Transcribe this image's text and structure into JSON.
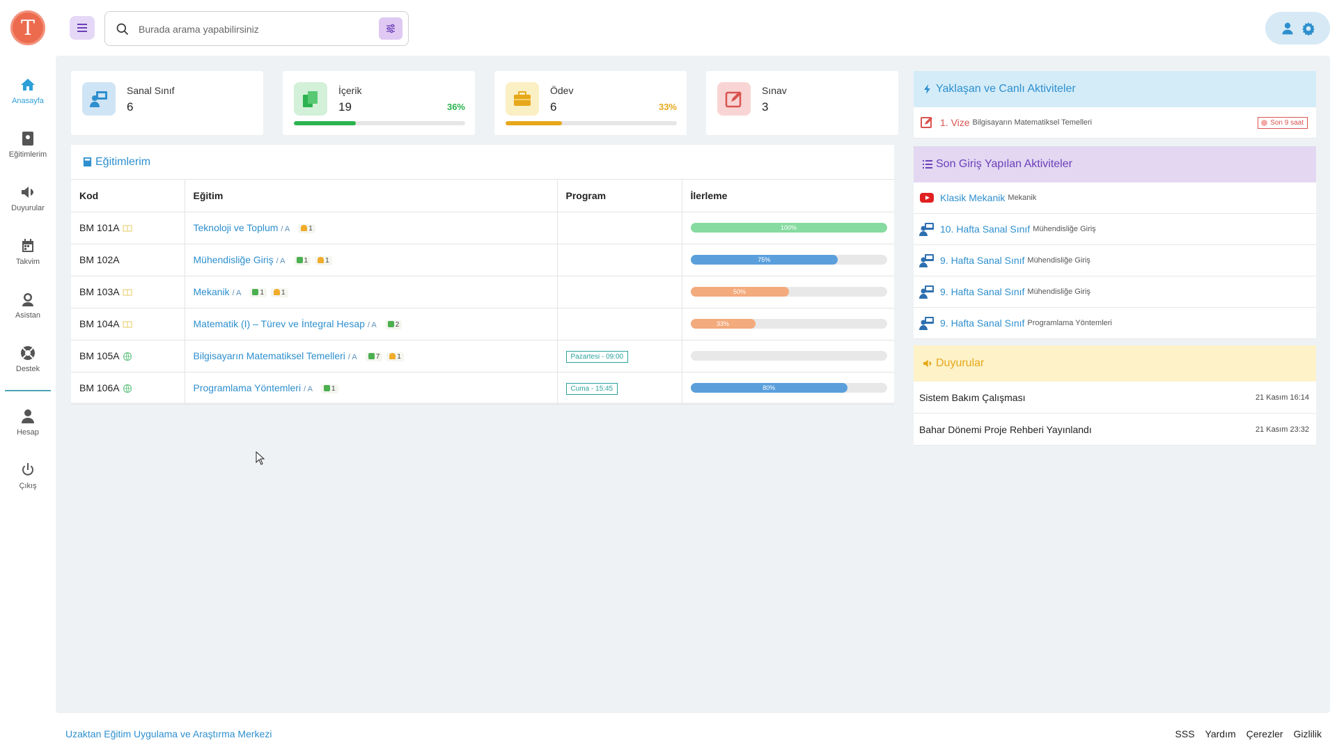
{
  "app": {
    "logo_letter": "T",
    "accent": "#2d8fce"
  },
  "sidebar": {
    "items": [
      {
        "label": "Anasayfa",
        "icon": "home-icon",
        "active": true
      },
      {
        "label": "Eğitimlerim",
        "icon": "course-icon"
      },
      {
        "label": "Duyurular",
        "icon": "megaphone-icon"
      },
      {
        "label": "Takvim",
        "icon": "calendar-icon"
      },
      {
        "label": "Asistan",
        "icon": "assistant-icon"
      },
      {
        "label": "Destek",
        "icon": "support-icon"
      },
      {
        "label": "Hesap",
        "icon": "user-icon"
      },
      {
        "label": "Çıkış",
        "icon": "power-icon"
      }
    ]
  },
  "search": {
    "placeholder": "Burada arama yapabilirsiniz"
  },
  "stats": [
    {
      "label": "Sanal Sınıf",
      "value": "6",
      "icon": "virtual-class-icon",
      "color": "#2d8fce"
    },
    {
      "label": "İçerik",
      "value": "19",
      "percent": "36%",
      "fraction": 0.36,
      "icon": "content-icon",
      "color": "#2bb34f"
    },
    {
      "label": "Ödev",
      "value": "6",
      "percent": "33%",
      "fraction": 0.33,
      "icon": "briefcase-icon",
      "color": "#e6a81a"
    },
    {
      "label": "Sınav",
      "value": "3",
      "icon": "exam-icon",
      "color": "#d9534f"
    }
  ],
  "courses": {
    "title": "Eğitimlerim",
    "headers": [
      "Kod",
      "Eğitim",
      "Program",
      "İlerleme"
    ],
    "rows": [
      {
        "code": "BM 101A",
        "mode": "book",
        "name": "Teknoloji ve Toplum",
        "section": "/ A",
        "badges": [
          {
            "type": "orange",
            "count": "1"
          }
        ],
        "program": "",
        "progress": 1.0,
        "progress_label": "100%",
        "bar_color": "#86dba0"
      },
      {
        "code": "BM 102A",
        "mode": "",
        "name": "Mühendisliğe Giriş",
        "section": "/ A",
        "badges": [
          {
            "type": "green",
            "count": "1"
          },
          {
            "type": "orange",
            "count": "1"
          }
        ],
        "program": "",
        "progress": 0.75,
        "progress_label": "75%",
        "bar_color": "#5a9fdc"
      },
      {
        "code": "BM 103A",
        "mode": "book",
        "name": "Mekanik",
        "section": "/ A",
        "badges": [
          {
            "type": "green",
            "count": "1"
          },
          {
            "type": "orange",
            "count": "1"
          }
        ],
        "program": "",
        "progress": 0.5,
        "progress_label": "50%",
        "bar_color": "#f3aa7c"
      },
      {
        "code": "BM 104A",
        "mode": "book",
        "name": "Matematik (I) – Türev ve İntegral Hesap",
        "section": "/ A",
        "badges": [
          {
            "type": "green",
            "count": "2"
          }
        ],
        "program": "",
        "progress": 0.33,
        "progress_label": "33%",
        "bar_color": "#f3aa7c"
      },
      {
        "code": "BM 105A",
        "mode": "globe",
        "name": "Bilgisayarın Matematiksel Temelleri",
        "section": "/ A",
        "badges": [
          {
            "type": "green",
            "count": "7"
          },
          {
            "type": "orange",
            "count": "1"
          }
        ],
        "program": "Pazartesi - 09:00",
        "progress": 0,
        "progress_label": "",
        "bar_color": "#5a9fdc"
      },
      {
        "code": "BM 106A",
        "mode": "globe",
        "name": "Programlama Yöntemleri",
        "section": "/ A",
        "badges": [
          {
            "type": "green",
            "count": "1"
          }
        ],
        "program": "Cuma - 15:45",
        "progress": 0.8,
        "progress_label": "80%",
        "bar_color": "#5a9fdc"
      }
    ]
  },
  "upcoming": {
    "title": "Yaklaşan ve Canlı Aktiviteler",
    "items": [
      {
        "name": "1. Vize",
        "course": "Bilgisayarın Matematiksel Temelleri",
        "tag": "Son 9 saat",
        "icon": "exam-icon"
      }
    ]
  },
  "recent": {
    "title": "Son Giriş Yapılan Aktiviteler",
    "items": [
      {
        "name": "Klasik Mekanik",
        "course": "Mekanik",
        "icon": "youtube-icon"
      },
      {
        "name": "10. Hafta Sanal Sınıf",
        "course": "Mühendisliğe Giriş",
        "icon": "virtual-class-icon"
      },
      {
        "name": "9. Hafta Sanal Sınıf",
        "course": "Mühendisliğe Giriş",
        "icon": "virtual-class-icon"
      },
      {
        "name": "9. Hafta Sanal Sınıf",
        "course": "Mühendisliğe Giriş",
        "icon": "virtual-class-icon"
      },
      {
        "name": "9. Hafta Sanal Sınıf",
        "course": "Programlama Yöntemleri",
        "icon": "virtual-class-icon"
      }
    ]
  },
  "announcements": {
    "title": "Duyurular",
    "items": [
      {
        "title": "Sistem Bakım Çalışması",
        "date": "21 Kasım 16:14"
      },
      {
        "title": "Bahar Dönemi Proje Rehberi Yayınlandı",
        "date": "21 Kasım 23:32"
      }
    ]
  },
  "footer": {
    "org": "Uzaktan Eğitim Uygulama ve Araştırma Merkezi",
    "links": [
      "SSS",
      "Yardım",
      "Çerezler",
      "Gizlilik"
    ]
  }
}
